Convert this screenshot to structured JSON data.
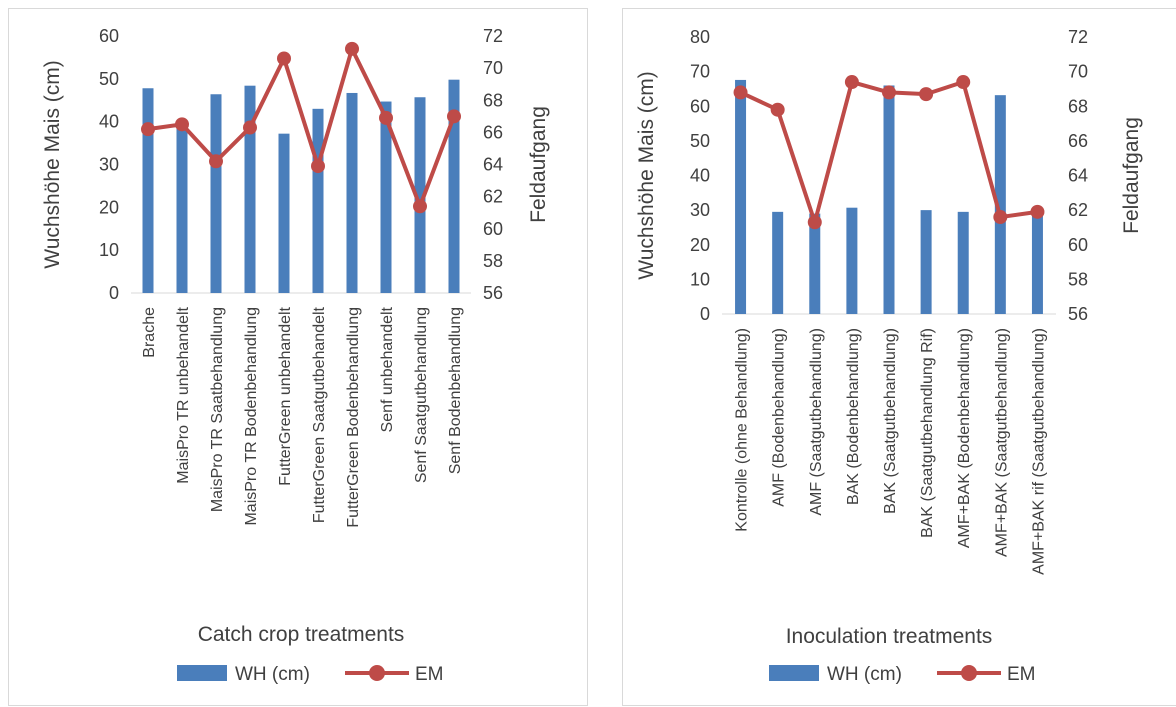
{
  "chart_data": [
    {
      "type": "bar+line",
      "categories": [
        "Brache",
        "MaisPro TR unbehandelt",
        "MaisPro TR Saatbehandlung",
        "MaisPro TR Bodenbehandlung",
        "FutterGreen unbehandelt",
        "FutterGreen Saatgutbehandelt",
        "FutterGreen Bodenbehandlung",
        "Senf unbehandelt",
        "Senf Saatgutbehandlung",
        "Senf Bodenbehandlung"
      ],
      "series": [
        {
          "name": "WH (cm)",
          "type": "bar",
          "axis": "left",
          "color": "#4a7ebb",
          "values": [
            47.8,
            39.5,
            46.4,
            48.4,
            37.2,
            43.0,
            46.7,
            44.7,
            45.7,
            49.8
          ]
        },
        {
          "name": "EM",
          "type": "line",
          "axis": "right",
          "color": "#be4b48",
          "values": [
            66.2,
            66.5,
            64.2,
            66.3,
            70.6,
            63.9,
            71.2,
            66.9,
            61.4,
            67.0
          ]
        }
      ],
      "xlabel": "Catch crop treatments",
      "ylabel": "Wuchshöhe Mais (cm)",
      "y2label": "Feldaufgang",
      "ylim": [
        0,
        60
      ],
      "yticks": [
        0,
        10,
        20,
        30,
        40,
        50,
        60
      ],
      "y2lim": [
        56,
        72
      ],
      "y2ticks": [
        56,
        58,
        60,
        62,
        64,
        66,
        68,
        70,
        72
      ],
      "legend": "bottom",
      "grid": false
    },
    {
      "type": "bar+line",
      "categories": [
        "Kontrolle (ohne Behandlung)",
        "AMF (Bodenbehandlung)",
        "AMF (Saatgutbehandlung)",
        "BAK (Bodenbehandlung)",
        "BAK (Saatgutbehandlung)",
        "BAK (Saatgutbehandlung Rif)",
        "AMF+BAK (Bodenbehandlung)",
        "AMF+BAK (Saatgutbehandlung)",
        "AMF+BAK rif (Saatgutbehandlung)"
      ],
      "series": [
        {
          "name": "WH (cm)",
          "type": "bar",
          "axis": "left",
          "color": "#4a7ebb",
          "values": [
            67.6,
            29.5,
            29.0,
            30.7,
            66.0,
            30.0,
            29.5,
            63.2,
            30.0
          ]
        },
        {
          "name": "EM",
          "type": "line",
          "axis": "right",
          "color": "#be4b48",
          "values": [
            68.8,
            67.8,
            61.3,
            69.4,
            68.8,
            68.7,
            69.4,
            61.6,
            61.9
          ]
        }
      ],
      "xlabel": "Inoculation treatments",
      "ylabel": "Wuchshöhe Mais (cm)",
      "y2label": "Feldaufgang",
      "ylim": [
        0,
        80
      ],
      "yticks": [
        0,
        10,
        20,
        30,
        40,
        50,
        60,
        70,
        80
      ],
      "y2lim": [
        56,
        72
      ],
      "y2ticks": [
        56,
        58,
        60,
        62,
        64,
        66,
        68,
        70,
        72
      ],
      "legend": "bottom",
      "grid": false
    }
  ]
}
